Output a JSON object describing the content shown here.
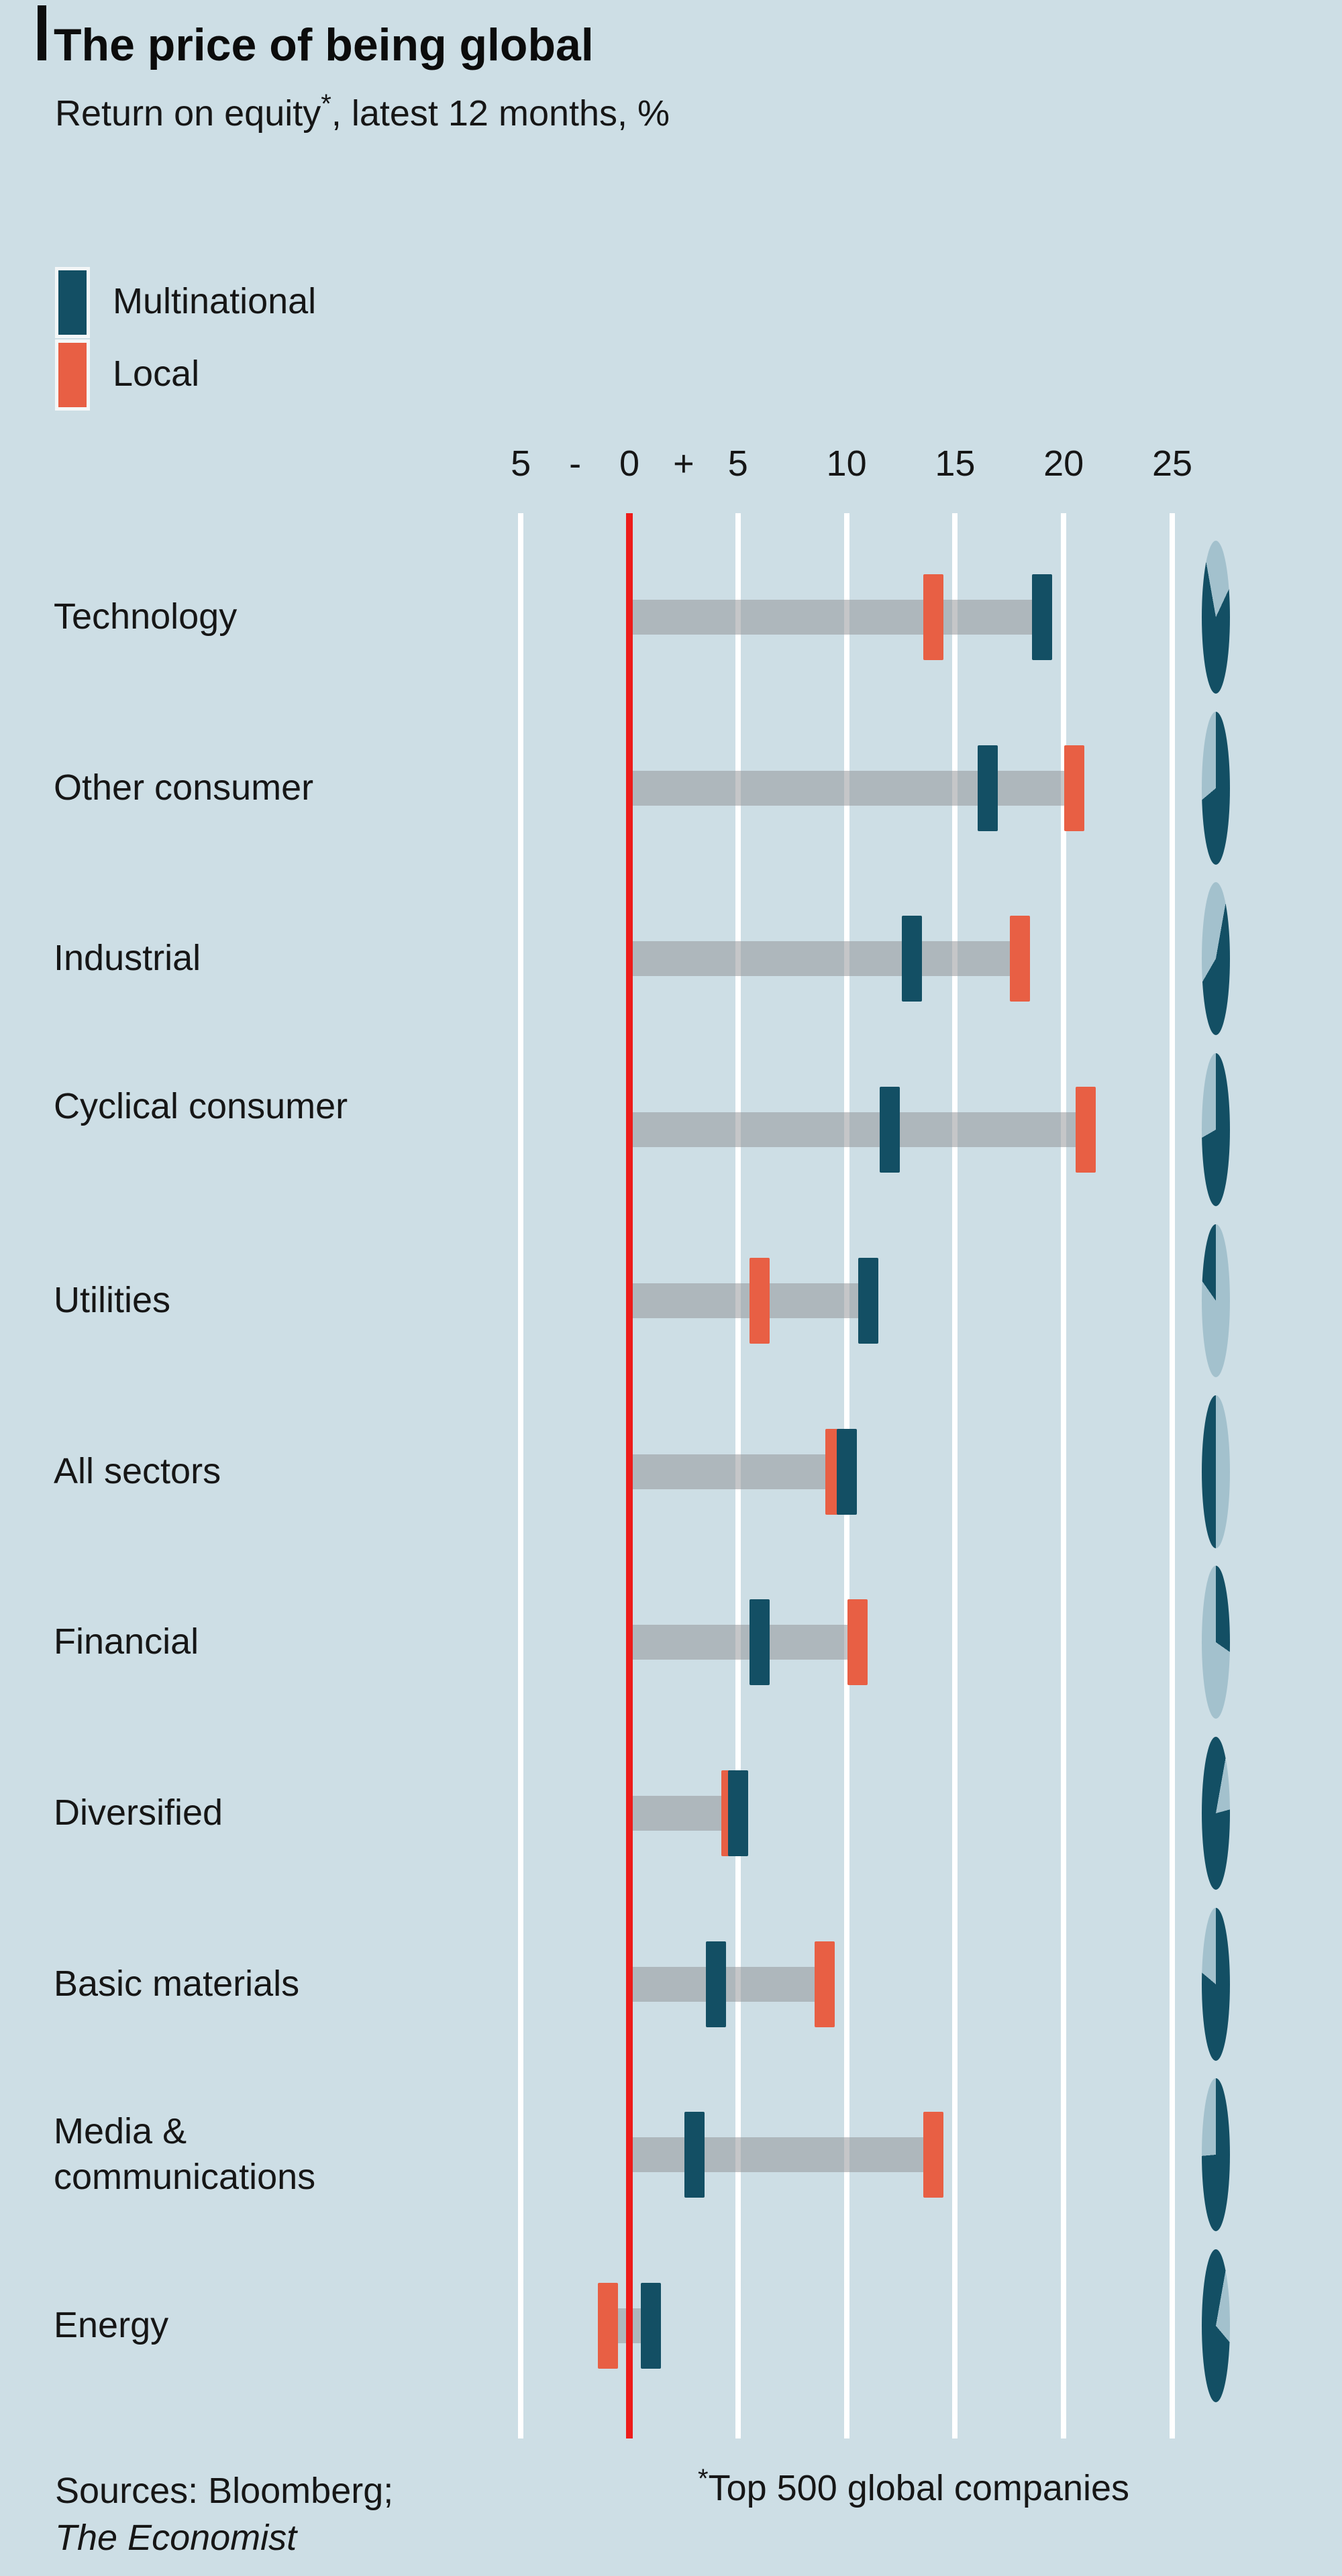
{
  "header": {
    "title": "The price of being global",
    "subtitle_prefix": "Return on equity",
    "subtitle_star": "*",
    "subtitle_suffix": ", latest 12 months, %"
  },
  "legend": {
    "items": [
      {
        "label": "Multinational",
        "color": "#134f64"
      },
      {
        "label": "Local",
        "color": "#e85f44"
      }
    ]
  },
  "colors": {
    "background": "#cddee5",
    "multinational": "#134f64",
    "local": "#e85f44",
    "zero_line": "#ed1c1a",
    "gridline": "#ffffff",
    "range_bar_gray": "#b2b5b8",
    "pie_dark": "#134f64",
    "pie_light": "#a3c1cd"
  },
  "chart_data": {
    "type": "scatter",
    "variant": "dumbbell (dot-plot, horizontal)",
    "title": "The price of being global",
    "subtitle": "Return on equity*, latest 12 months, %",
    "xlabel": "Return on equity, %",
    "xlim": [
      -7,
      27
    ],
    "x_ticks": [
      -5,
      0,
      5,
      10,
      15,
      20,
      25
    ],
    "grid": "vertical white gridlines, red vertical line at 0",
    "legend_position": "top-left",
    "categories": [
      "Technology",
      "Other consumer",
      "Industrial",
      "Cyclical consumer",
      "Utilities",
      "All sectors",
      "Financial",
      "Diversified",
      "Basic materials",
      "Media & communications",
      "Energy"
    ],
    "series": [
      {
        "name": "Multinational",
        "values": [
          19,
          16.5,
          13,
          12,
          11,
          10,
          6,
          5,
          4,
          3,
          1
        ]
      },
      {
        "name": "Local",
        "values": [
          14,
          20.5,
          18,
          21,
          6,
          9.5,
          10.5,
          4.7,
          9,
          14,
          -1
        ]
      }
    ],
    "range_bar_note": "gray bar spans from 0 to the farther marker of each row",
    "side_pies_note": "small edge-on pie ellipse per row, dark vs light share (approx.)",
    "side_pies": [
      {
        "light_start_deg": -10,
        "light_end_deg": 25
      },
      {
        "light_start_deg": -130,
        "light_end_deg": 0
      },
      {
        "light_start_deg": -150,
        "light_end_deg": 10
      },
      {
        "light_start_deg": -120,
        "light_end_deg": 0
      },
      {
        "light_start_deg": 0,
        "light_end_deg": 325
      },
      {
        "light_start_deg": 0,
        "light_end_deg": 180
      },
      {
        "light_start_deg": 125,
        "light_end_deg": 360
      },
      {
        "light_start_deg": 10,
        "light_end_deg": 75
      },
      {
        "light_start_deg": -50,
        "light_end_deg": 0
      },
      {
        "light_start_deg": -95,
        "light_end_deg": 0
      },
      {
        "light_start_deg": 10,
        "light_end_deg": 140
      }
    ]
  },
  "axis": {
    "tick_labels": [
      {
        "text": "5",
        "v": -5
      },
      {
        "text": "-",
        "v": -2.5
      },
      {
        "text": "0",
        "v": 0
      },
      {
        "text": "+",
        "v": 2.5
      },
      {
        "text": "5",
        "v": 5
      },
      {
        "text": "10",
        "v": 10
      },
      {
        "text": "15",
        "v": 15
      },
      {
        "text": "20",
        "v": 20
      },
      {
        "text": "25",
        "v": 25
      }
    ]
  },
  "footer": {
    "sources_line1": "Sources: Bloomberg;",
    "sources_line2": "The Economist",
    "footnote_star": "*",
    "footnote_text": "Top 500 global companies"
  }
}
